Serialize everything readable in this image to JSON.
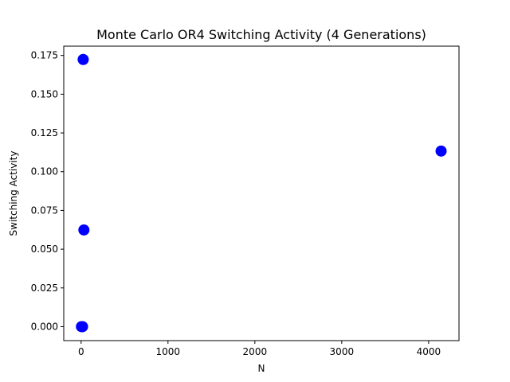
{
  "chart_data": {
    "type": "scatter",
    "title": "Monte Carlo OR4 Switching Activity (4 Generations)",
    "xlabel": "N",
    "ylabel": "Switching Activity",
    "xlim": [
      -200,
      4350
    ],
    "ylim": [
      -0.009,
      0.181
    ],
    "xticks": [
      0,
      1000,
      2000,
      3000,
      4000
    ],
    "xtick_labels": [
      "0",
      "1000",
      "2000",
      "3000",
      "4000"
    ],
    "yticks": [
      0.0,
      0.025,
      0.05,
      0.075,
      0.1,
      0.125,
      0.15,
      0.175
    ],
    "ytick_labels": [
      "0.000",
      "0.025",
      "0.050",
      "0.075",
      "0.100",
      "0.125",
      "0.150",
      "0.175"
    ],
    "grid": false,
    "series": [
      {
        "color": "#0000ff",
        "points": [
          {
            "x": 4,
            "y": 0.0
          },
          {
            "x": 16,
            "y": 0.0
          },
          {
            "x": 32,
            "y": 0.0624
          },
          {
            "x": 24,
            "y": 0.1724
          },
          {
            "x": 4144,
            "y": 0.1133
          }
        ]
      }
    ]
  }
}
